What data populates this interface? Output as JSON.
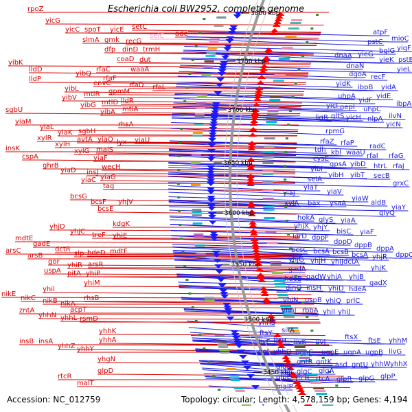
{
  "title": "Escherichia coli BW2952, complete genome",
  "accession": "Accession: NC_012759",
  "footer": "Topology: circular; Length: 4,578,159 bp; Genes: 4,194",
  "colors": {
    "left_genes": "#d40000",
    "right_genes": "#1a1adc",
    "pseudo_gene": "#f4a0c8",
    "backbone": "#999999",
    "gc_tick": "#2e8b2e"
  },
  "kbp_labels": [
    "3800 kbp",
    "3750 kbp",
    "3700 kbp",
    "3650 kbp",
    "3600 kbp",
    "3550 kbp",
    "3500 kbp",
    "3450 kbp"
  ],
  "left_genes": [
    [
      "rpoZ",
      40,
      16
    ],
    [
      "yicG",
      66,
      33
    ],
    [
      "yicC",
      95,
      46
    ],
    [
      "spoT",
      123,
      46
    ],
    [
      "yicE",
      160,
      46
    ],
    [
      "setC",
      192,
      42
    ],
    [
      "selC",
      218,
      55,
      "pink"
    ],
    [
      "ade",
      255,
      52
    ],
    [
      "slmA",
      120,
      61
    ],
    [
      "gmk",
      152,
      61
    ],
    [
      "recG",
      183,
      63
    ],
    [
      "dfp",
      152,
      75
    ],
    [
      "dinD",
      178,
      75
    ],
    [
      "trmH",
      208,
      75
    ],
    [
      "coaD",
      170,
      89
    ],
    [
      "dut",
      203,
      90
    ],
    [
      "yibK",
      12,
      94
    ],
    [
      "lldD",
      42,
      104
    ],
    [
      "rfaC",
      140,
      104
    ],
    [
      "waaA",
      190,
      104
    ],
    [
      "lldP",
      42,
      118
    ],
    [
      "yibQ",
      110,
      110
    ],
    [
      "rfaF",
      150,
      117
    ],
    [
      "envC",
      136,
      124
    ],
    [
      "rfaD",
      188,
      127
    ],
    [
      "rfaL",
      222,
      130
    ],
    [
      "yibL",
      94,
      132
    ],
    [
      "mtlR",
      122,
      140
    ],
    [
      "gpmM",
      158,
      136
    ],
    [
      "yibV",
      90,
      145
    ],
    [
      "yibG",
      117,
      156
    ],
    [
      "mtlD",
      148,
      152
    ],
    [
      "lldR",
      176,
      150
    ],
    [
      "yibA",
      146,
      166
    ],
    [
      "mtlA",
      178,
      162
    ],
    [
      "sgbU",
      8,
      163
    ],
    [
      "yiaM",
      22,
      180
    ],
    [
      "yiaL",
      58,
      188
    ],
    [
      "rhsA",
      172,
      184
    ],
    [
      "yiaK",
      84,
      196
    ],
    [
      "sgbH",
      114,
      194
    ],
    [
      "xylR",
      54,
      204
    ],
    [
      "avtA",
      112,
      206
    ],
    [
      "yiaO",
      142,
      206
    ],
    [
      "lyx",
      170,
      210
    ],
    [
      "yiaU",
      196,
      207
    ],
    [
      "xylH",
      80,
      213
    ],
    [
      "malS",
      140,
      221
    ],
    [
      "insK",
      8,
      219
    ],
    [
      "xylG",
      108,
      223
    ],
    [
      "cspA",
      32,
      231
    ],
    [
      "yiaF",
      136,
      233
    ],
    [
      "ghrB",
      62,
      244
    ],
    [
      "wecH",
      148,
      246
    ],
    [
      "yiaD",
      88,
      251
    ],
    [
      "insJ",
      126,
      254
    ],
    [
      "yiaG",
      146,
      261
    ],
    [
      "yiaC",
      118,
      265
    ],
    [
      "tag",
      150,
      274
    ],
    [
      "bcsG",
      102,
      289
    ],
    [
      "bcsF",
      132,
      297
    ],
    [
      "yhjV",
      172,
      297
    ],
    [
      "bcsE",
      142,
      307
    ],
    [
      "kdgK",
      164,
      329
    ],
    [
      "yhjD",
      72,
      333
    ],
    [
      "yhjC",
      102,
      340
    ],
    [
      "treF",
      134,
      345
    ],
    [
      "yhjE",
      164,
      346
    ],
    [
      "mdtE",
      22,
      350
    ],
    [
      "gadE",
      48,
      358
    ],
    [
      "arsC",
      8,
      368
    ],
    [
      "dctR",
      80,
      366
    ],
    [
      "slp",
      108,
      372
    ],
    [
      "hdeD",
      127,
      371
    ],
    [
      "mdtF",
      160,
      369
    ],
    [
      "arsB",
      40,
      375
    ],
    [
      "gor",
      70,
      384
    ],
    [
      "yhiR",
      98,
      389
    ],
    [
      "arsR",
      128,
      388
    ],
    [
      "uspA",
      64,
      397
    ],
    [
      "pitA",
      98,
      401
    ],
    [
      "yhiP",
      125,
      401
    ],
    [
      "yhiM",
      122,
      415
    ],
    [
      "yhiI",
      62,
      424
    ],
    [
      "rhsB",
      122,
      437
    ],
    [
      "nikE",
      2,
      431
    ],
    [
      "nikC",
      30,
      437
    ],
    [
      "nikB",
      62,
      441
    ],
    [
      "nikA",
      88,
      445
    ],
    [
      "zntA",
      28,
      455
    ],
    [
      "acpT",
      102,
      454
    ],
    [
      "yhhN",
      56,
      462
    ],
    [
      "yhhL",
      88,
      466
    ],
    [
      "rsmD",
      116,
      467
    ],
    [
      "yhhK",
      144,
      485
    ],
    [
      "yhhA",
      144,
      498
    ],
    [
      "insB",
      28,
      500
    ],
    [
      "insA",
      56,
      500
    ],
    [
      "yhhZ",
      84,
      507
    ],
    [
      "yhhY",
      112,
      511
    ],
    [
      "yhgN",
      142,
      526
    ],
    [
      "glpD",
      142,
      543
    ],
    [
      "rtcR",
      84,
      551
    ],
    [
      "malT",
      112,
      561
    ]
  ],
  "right_genes": [
    [
      "atpF",
      543,
      50
    ],
    [
      "mioC",
      570,
      59
    ],
    [
      "pstC",
      535,
      64
    ],
    [
      "bglG",
      552,
      77
    ],
    [
      "yigF",
      578,
      73
    ],
    [
      "yieG",
      521,
      82
    ],
    [
      "yieK",
      552,
      90
    ],
    [
      "pstB",
      580,
      90
    ],
    [
      "dnaA",
      487,
      84
    ],
    [
      "dnaN",
      504,
      99
    ],
    [
      "yieL",
      578,
      104
    ],
    [
      "dgoA",
      508,
      111
    ],
    [
      "recF",
      540,
      115
    ],
    [
      "yidK",
      489,
      125
    ],
    [
      "ibpB",
      521,
      130
    ],
    [
      "yidA",
      555,
      130
    ],
    [
      "uhpA",
      492,
      143
    ],
    [
      "yidE",
      548,
      143
    ],
    [
      "ibpA",
      577,
      154
    ],
    [
      "yidF",
      522,
      149
    ],
    [
      "yicI",
      475,
      157
    ],
    [
      "nepI",
      495,
      159
    ],
    [
      "uhpC",
      529,
      162
    ],
    [
      "ilvN",
      566,
      172
    ],
    [
      "ligB",
      459,
      174
    ],
    [
      "gltS",
      482,
      172
    ],
    [
      "yicH",
      504,
      174
    ],
    [
      "nlpA",
      535,
      176
    ],
    [
      "yicN",
      562,
      184
    ],
    [
      "rpmG",
      474,
      194
    ],
    [
      "rfaZ",
      466,
      209
    ],
    [
      "rfaP",
      496,
      211
    ],
    [
      "radC",
      538,
      216
    ],
    [
      "tdh",
      458,
      221
    ],
    [
      "kbl",
      482,
      225
    ],
    [
      "waaU",
      504,
      225
    ],
    [
      "rfaI",
      534,
      230
    ],
    [
      "rfaG",
      566,
      230
    ],
    [
      "cysE",
      456,
      234
    ],
    [
      "gpsA",
      480,
      242
    ],
    [
      "yibD",
      510,
      242
    ],
    [
      "htrL",
      544,
      245
    ],
    [
      "rfaJ",
      572,
      245
    ],
    [
      "yibI",
      452,
      249
    ],
    [
      "yibH",
      478,
      258
    ],
    [
      "yibT",
      510,
      258
    ],
    [
      "secB",
      544,
      259
    ],
    [
      "selA",
      448,
      264
    ],
    [
      "grxC",
      572,
      270
    ],
    [
      "yiaT",
      442,
      276
    ],
    [
      "yiaV",
      476,
      282
    ],
    [
      "yiaJ",
      412,
      284
    ],
    [
      "yiaW",
      512,
      292
    ],
    [
      "aldB",
      540,
      298
    ],
    [
      "yiaY",
      570,
      305
    ],
    [
      "xylA",
      414,
      299
    ],
    [
      "bax",
      448,
      299
    ],
    [
      "ysaA",
      480,
      299
    ],
    [
      "hokA",
      433,
      320
    ],
    [
      "glyS",
      464,
      323
    ],
    [
      "yiaA",
      496,
      324
    ],
    [
      "yhjX",
      428,
      332
    ],
    [
      "yhjY",
      456,
      334
    ],
    [
      "bisC",
      490,
      340
    ],
    [
      "yiaF",
      524,
      341
    ],
    [
      "glyQ",
      552,
      313
    ],
    [
      "ldrD",
      426,
      347
    ],
    [
      "dppF",
      454,
      349
    ],
    [
      "dppD",
      486,
      355
    ],
    [
      "dppB",
      516,
      360
    ],
    [
      "dppA",
      548,
      365
    ],
    [
      "bcsC",
      424,
      367
    ],
    [
      "bcsA",
      456,
      369
    ],
    [
      "bcsB",
      484,
      370
    ],
    [
      "bcsA",
      512,
      374
    ],
    [
      "yhjR",
      542,
      377
    ],
    [
      "dppC",
      576,
      374
    ],
    [
      "yhjG",
      420,
      381
    ],
    [
      "yhjH",
      452,
      383
    ],
    [
      "yhiJ",
      482,
      384
    ],
    [
      "dctA",
      500,
      384
    ],
    [
      "yhjK",
      540,
      393
    ],
    [
      "gadA",
      420,
      395
    ],
    [
      "hdeB",
      414,
      409
    ],
    [
      "gadW",
      446,
      406
    ],
    [
      "yhjA",
      476,
      406
    ],
    [
      "yhjB",
      508,
      406
    ],
    [
      "gadX",
      538,
      415
    ],
    [
      "dinQ",
      416,
      422
    ],
    [
      "insH",
      446,
      422
    ],
    [
      "yhiD",
      478,
      423
    ],
    [
      "hdeA",
      508,
      424
    ],
    [
      "yhiN",
      412,
      440
    ],
    [
      "uspB",
      444,
      440
    ],
    [
      "yhiQ",
      474,
      441
    ],
    [
      "prlC",
      504,
      441
    ],
    [
      "yhhJ",
      410,
      455
    ],
    [
      "rbbA",
      440,
      455
    ],
    [
      "yhiI",
      470,
      457
    ],
    [
      "yhiJ",
      492,
      457
    ],
    [
      "yhhS",
      376,
      473
    ],
    [
      "sirA",
      410,
      484
    ],
    [
      "ftsY",
      378,
      488
    ],
    [
      "ftsX",
      502,
      494
    ],
    [
      "ftsE",
      536,
      499
    ],
    [
      "yhhM",
      566,
      499
    ],
    [
      "livF",
      376,
      501
    ],
    [
      "livH",
      398,
      499
    ],
    [
      "livK",
      428,
      501
    ],
    [
      "livJ",
      460,
      501
    ],
    [
      "ggt",
      376,
      515
    ],
    [
      "yhhQ",
      398,
      515
    ],
    [
      "ugpC",
      430,
      516
    ],
    [
      "ugpE",
      468,
      516
    ],
    [
      "ugpA",
      500,
      516
    ],
    [
      "ugpB",
      532,
      516
    ],
    [
      "livG",
      566,
      515
    ],
    [
      "gntR",
      432,
      530
    ],
    [
      "gntK",
      460,
      530
    ],
    [
      "glgB",
      402,
      537
    ],
    [
      "asd",
      488,
      534
    ],
    [
      "gntU",
      512,
      534
    ],
    [
      "yhhW",
      540,
      533
    ],
    [
      "yhhX",
      568,
      533
    ],
    [
      "glgC",
      432,
      544
    ],
    [
      "glgA",
      464,
      543
    ],
    [
      "glpE",
      402,
      552
    ],
    [
      "rtcB",
      430,
      554
    ],
    [
      "rtcA",
      460,
      555
    ],
    [
      "glpR",
      490,
      555
    ],
    [
      "glpG",
      522,
      554
    ],
    [
      "glpP",
      554,
      551
    ],
    [
      "malP",
      402,
      566
    ]
  ]
}
